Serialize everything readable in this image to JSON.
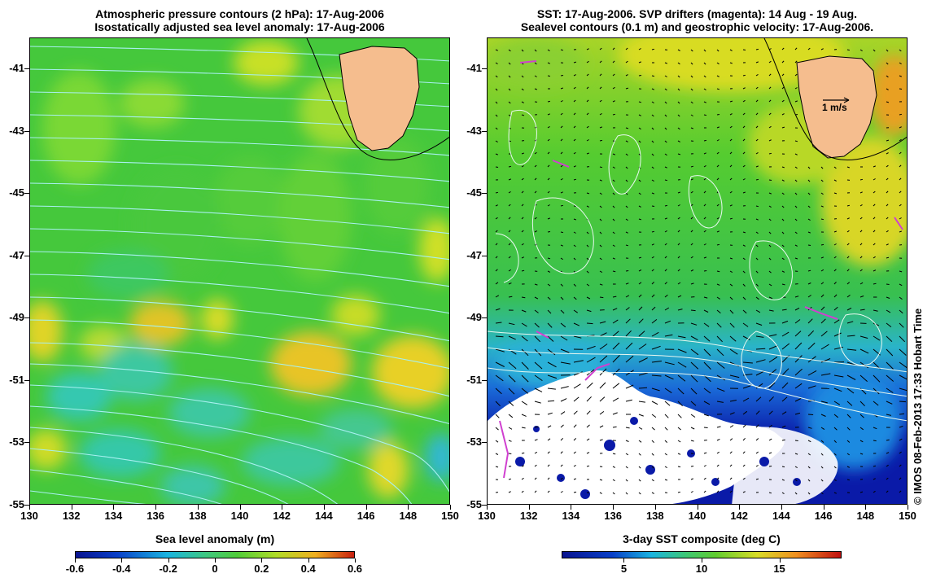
{
  "left": {
    "title_line1": "Atmospheric pressure contours (2 hPa): 17-Aug-2006",
    "title_line2": "Isostatically adjusted sea level anomaly: 17-Aug-2006",
    "colorbar_label": "Sea level anomaly (m)",
    "colorbar_ticks": [
      "-0.6",
      "-0.4",
      "-0.2",
      "0",
      "0.2",
      "0.4",
      "0.6"
    ],
    "colorbar_range": [
      -0.6,
      0.6
    ]
  },
  "right": {
    "title_line1": "SST: 17-Aug-2006. SVP drifters (magenta): 14 Aug - 19 Aug.",
    "title_line2": "Sealevel contours (0.1 m) and geostrophic velocity: 17-Aug-2006.",
    "colorbar_label": "3-day SST composite (deg C)",
    "colorbar_ticks": [
      "5",
      "10",
      "15"
    ],
    "colorbar_tick_values": [
      5,
      10,
      15
    ],
    "colorbar_range": [
      1,
      19
    ],
    "vector_scale_label": "1 m/s"
  },
  "axes": {
    "lat_ticks": [
      "-41",
      "-43",
      "-45",
      "-47",
      "-49",
      "-51",
      "-53",
      "-55"
    ],
    "lon_ticks": [
      "130",
      "132",
      "134",
      "136",
      "138",
      "140",
      "142",
      "144",
      "146",
      "148",
      "150"
    ],
    "lat_range": [
      -55,
      -40
    ],
    "lon_range": [
      130,
      150
    ]
  },
  "credit": "© IMOS 08-Feb-2013 17:33 Hobart Time",
  "colors": {
    "land": "#f5bd8e",
    "ssl_green": "#3dc83a",
    "ssl_yellow": "#e8e020",
    "ssl_cyan": "#33c8c8",
    "sst_deep_blue": "#0a1aa8",
    "sst_cyan": "#1ab4e0",
    "pressure_contours": "#a8f0f0",
    "drifters": "#d040d0"
  }
}
